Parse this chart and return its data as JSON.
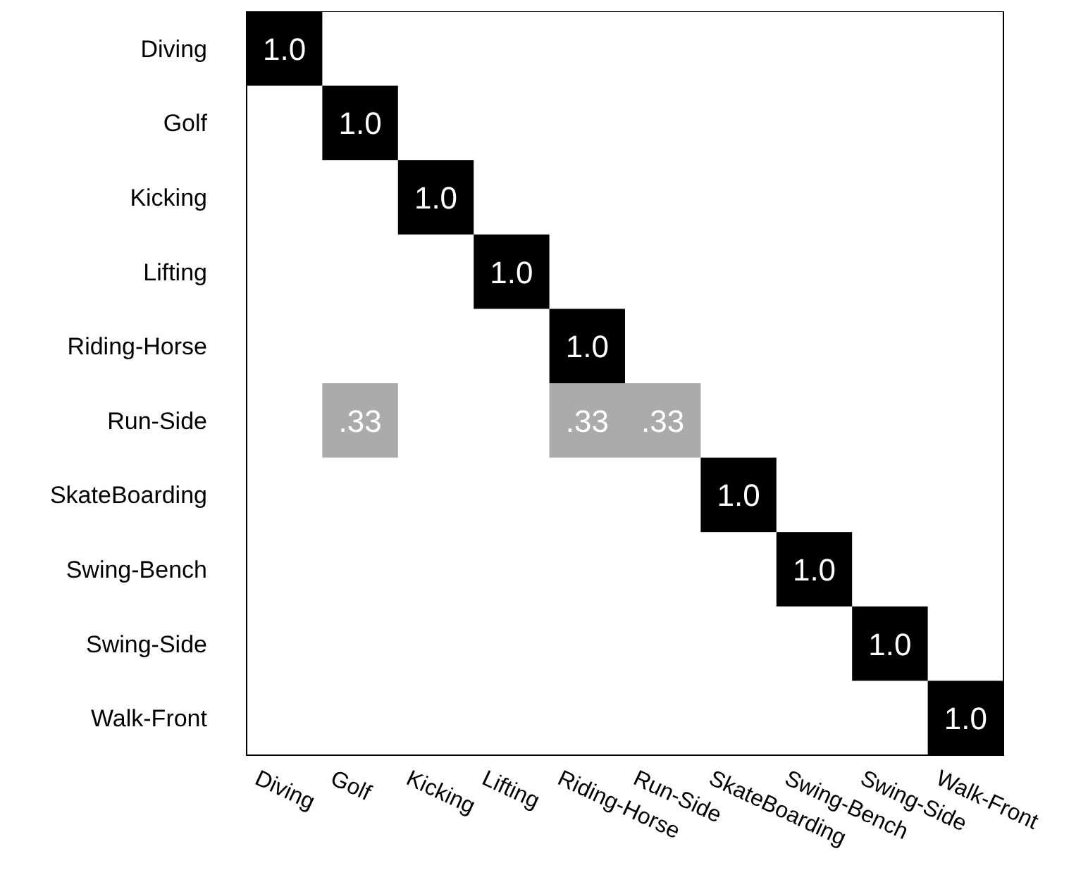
{
  "chart_data": {
    "type": "heatmap",
    "categories": [
      "Diving",
      "Golf",
      "Kicking",
      "Lifting",
      "Riding-Horse",
      "Run-Side",
      "SkateBoarding",
      "Swing-Bench",
      "Swing-Side",
      "Walk-Front"
    ],
    "y_categories": [
      "Diving",
      "Golf",
      "Kicking",
      "Lifting",
      "Riding-Horse",
      "Run-Side",
      "SkateBoarding",
      "Swing-Bench",
      "Swing-Side",
      "Walk-Front"
    ],
    "cells": [
      [
        1.0,
        null,
        null,
        null,
        null,
        null,
        null,
        null,
        null,
        null
      ],
      [
        null,
        1.0,
        null,
        null,
        null,
        null,
        null,
        null,
        null,
        null
      ],
      [
        null,
        null,
        1.0,
        null,
        null,
        null,
        null,
        null,
        null,
        null
      ],
      [
        null,
        null,
        null,
        1.0,
        null,
        null,
        null,
        null,
        null,
        null
      ],
      [
        null,
        null,
        null,
        null,
        1.0,
        null,
        null,
        null,
        null,
        null
      ],
      [
        null,
        0.33,
        null,
        null,
        0.33,
        0.33,
        null,
        null,
        null,
        null
      ],
      [
        null,
        null,
        null,
        null,
        null,
        null,
        1.0,
        null,
        null,
        null
      ],
      [
        null,
        null,
        null,
        null,
        null,
        null,
        null,
        1.0,
        null,
        null
      ],
      [
        null,
        null,
        null,
        null,
        null,
        null,
        null,
        null,
        1.0,
        null
      ],
      [
        null,
        null,
        null,
        null,
        null,
        null,
        null,
        null,
        null,
        1.0
      ]
    ],
    "cell_labels": [
      [
        "1.0",
        null,
        null,
        null,
        null,
        null,
        null,
        null,
        null,
        null
      ],
      [
        null,
        "1.0",
        null,
        null,
        null,
        null,
        null,
        null,
        null,
        null
      ],
      [
        null,
        null,
        "1.0",
        null,
        null,
        null,
        null,
        null,
        null,
        null
      ],
      [
        null,
        null,
        null,
        "1.0",
        null,
        null,
        null,
        null,
        null,
        null
      ],
      [
        null,
        null,
        null,
        null,
        "1.0",
        null,
        null,
        null,
        null,
        null
      ],
      [
        null,
        ".33",
        null,
        null,
        ".33",
        ".33",
        null,
        null,
        null,
        null
      ],
      [
        null,
        null,
        null,
        null,
        null,
        null,
        "1.0",
        null,
        null,
        null
      ],
      [
        null,
        null,
        null,
        null,
        null,
        null,
        null,
        "1.0",
        null,
        null
      ],
      [
        null,
        null,
        null,
        null,
        null,
        null,
        null,
        null,
        "1.0",
        null
      ],
      [
        null,
        null,
        null,
        null,
        null,
        null,
        null,
        null,
        null,
        "1.0"
      ]
    ]
  }
}
